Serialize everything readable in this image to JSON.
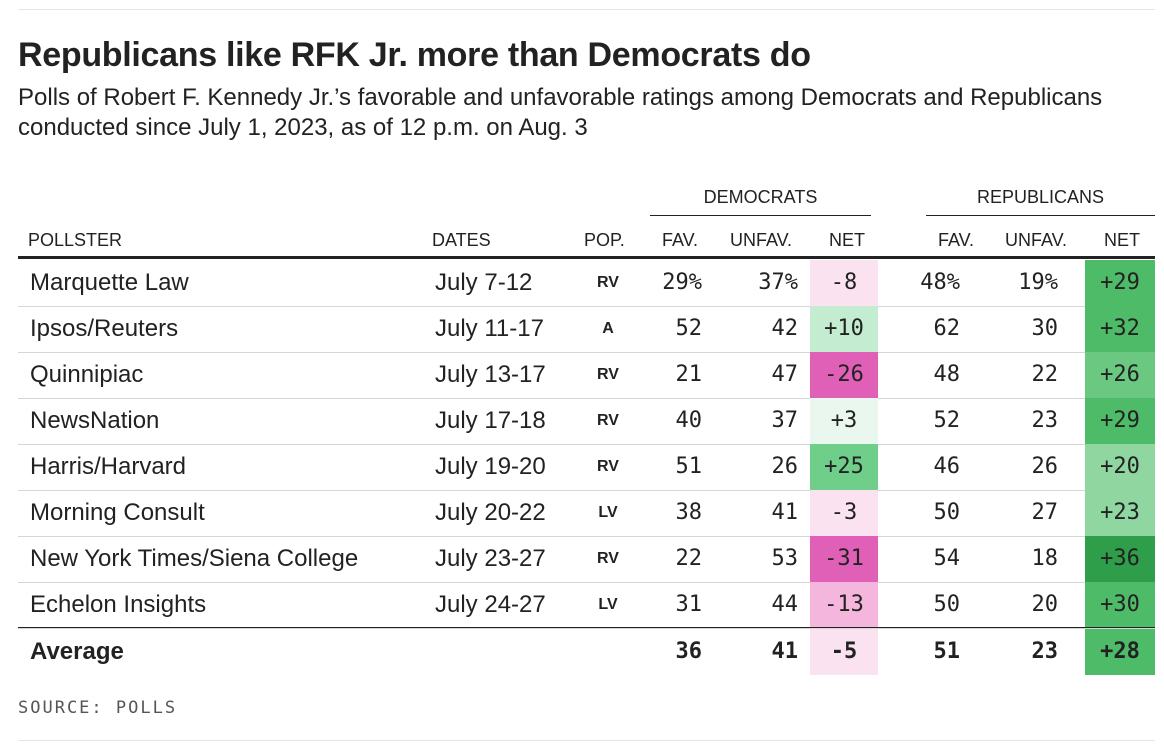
{
  "title": "Republicans like RFK Jr. more than Democrats do",
  "subtitle": "Polls of Robert F. Kennedy Jr.’s favorable and unfavorable ratings among Democrats and Republicans conducted since July 1, 2023, as of 12 p.m. on Aug. 3",
  "source": "SOURCE: POLLS",
  "groups": {
    "dem": "DEMOCRATS",
    "rep": "REPUBLICANS"
  },
  "headers": {
    "pollster": "POLLSTER",
    "dates": "DATES",
    "pop": "POP.",
    "fav": "FAV.",
    "unfav": "UNFAV.",
    "net": "NET"
  },
  "colors": {
    "dem_negative_strong": "#e060b8",
    "dem_negative_light": "#fbe2f1",
    "dem_positive_strong": "#6fcf8a",
    "dem_positive_light": "#eaf7ee",
    "rep_positive_strong": "#2e9e4a",
    "rep_positive_light": "#8fd6a0"
  },
  "chart_data": {
    "type": "table",
    "columns": [
      "POLLSTER",
      "DATES",
      "POP.",
      "DEM FAV.",
      "DEM UNFAV.",
      "DEM NET",
      "REP FAV.",
      "REP UNFAV.",
      "REP NET"
    ],
    "rows": [
      {
        "pollster": "Marquette Law",
        "dates": "July 7-12",
        "pop": "RV",
        "dem_fav": "29%",
        "dem_unfav": "37%",
        "dem_net": "-8",
        "rep_fav": "48%",
        "rep_unfav": "19%",
        "rep_net": "+29",
        "dem_net_value": -8,
        "rep_net_value": 29
      },
      {
        "pollster": "Ipsos/Reuters",
        "dates": "July 11-17",
        "pop": "A",
        "dem_fav": "52",
        "dem_unfav": "42",
        "dem_net": "+10",
        "rep_fav": "62",
        "rep_unfav": "30",
        "rep_net": "+32",
        "dem_net_value": 10,
        "rep_net_value": 32
      },
      {
        "pollster": "Quinnipiac",
        "dates": "July 13-17",
        "pop": "RV",
        "dem_fav": "21",
        "dem_unfav": "47",
        "dem_net": "-26",
        "rep_fav": "48",
        "rep_unfav": "22",
        "rep_net": "+26",
        "dem_net_value": -26,
        "rep_net_value": 26
      },
      {
        "pollster": "NewsNation",
        "dates": "July 17-18",
        "pop": "RV",
        "dem_fav": "40",
        "dem_unfav": "37",
        "dem_net": "+3",
        "rep_fav": "52",
        "rep_unfav": "23",
        "rep_net": "+29",
        "dem_net_value": 3,
        "rep_net_value": 29
      },
      {
        "pollster": "Harris/Harvard",
        "dates": "July 19-20",
        "pop": "RV",
        "dem_fav": "51",
        "dem_unfav": "26",
        "dem_net": "+25",
        "rep_fav": "46",
        "rep_unfav": "26",
        "rep_net": "+20",
        "dem_net_value": 25,
        "rep_net_value": 20
      },
      {
        "pollster": "Morning Consult",
        "dates": "July 20-22",
        "pop": "LV",
        "dem_fav": "38",
        "dem_unfav": "41",
        "dem_net": "-3",
        "rep_fav": "50",
        "rep_unfav": "27",
        "rep_net": "+23",
        "dem_net_value": -3,
        "rep_net_value": 23
      },
      {
        "pollster": "New York Times/Siena College",
        "dates": "July 23-27",
        "pop": "RV",
        "dem_fav": "22",
        "dem_unfav": "53",
        "dem_net": "-31",
        "rep_fav": "54",
        "rep_unfav": "18",
        "rep_net": "+36",
        "dem_net_value": -31,
        "rep_net_value": 36
      },
      {
        "pollster": "Echelon Insights",
        "dates": "July 24-27",
        "pop": "LV",
        "dem_fav": "31",
        "dem_unfav": "44",
        "dem_net": "-13",
        "rep_fav": "50",
        "rep_unfav": "20",
        "rep_net": "+30",
        "dem_net_value": -13,
        "rep_net_value": 30
      }
    ],
    "average": {
      "pollster": "Average",
      "dem_fav": "36",
      "dem_unfav": "41",
      "dem_net": "-5",
      "rep_fav": "51",
      "rep_unfav": "23",
      "rep_net": "+28",
      "dem_net_value": -5,
      "rep_net_value": 28
    }
  }
}
